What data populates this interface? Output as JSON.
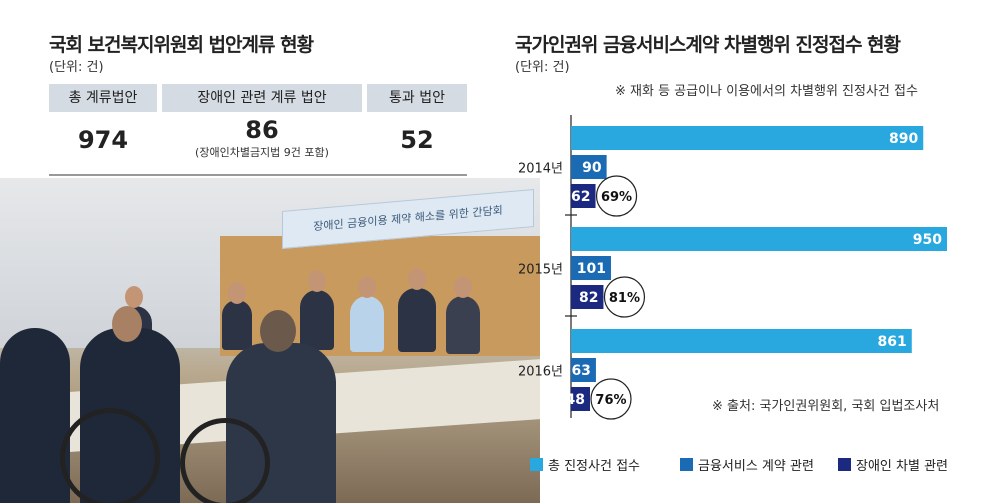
{
  "left": {
    "title": "국회 보건복지위원회 법안계류 현황",
    "unit": "(단위: 건)",
    "headers": [
      "총 계류법안",
      "장애인 관련 계류 법안",
      "통과 법안"
    ],
    "values": [
      "974",
      "86",
      "52"
    ],
    "sub": "(장애인차별금지법 9건 포함)",
    "photo_banner": "장애인 금융이용 제약 해소를 위한 간담회"
  },
  "right": {
    "title": "국가인권위 금융서비스계약 차별행위 진정접수 현황",
    "unit": "(단위: 건)",
    "note": "※ 재화 등 공급이나 이용에서의 차별행위 진정사건 접수",
    "source": "※ 출처: 국가인권위원회, 국회 입법조사처"
  },
  "chart_data": {
    "type": "bar",
    "orientation": "horizontal",
    "categories": [
      "2014년",
      "2015년",
      "2016년"
    ],
    "series": [
      {
        "name": "총 진정사건 접수",
        "values": [
          890,
          950,
          861
        ],
        "color": "#29a8e0"
      },
      {
        "name": "금융서비스 계약 관련",
        "values": [
          90,
          101,
          63
        ],
        "color": "#1a6bb3"
      },
      {
        "name": "장애인 차별 관련",
        "values": [
          62,
          82,
          48
        ],
        "color": "#1b2a80"
      }
    ],
    "annotations": [
      "69%",
      "81%",
      "76%"
    ],
    "legend_position": "bottom"
  }
}
